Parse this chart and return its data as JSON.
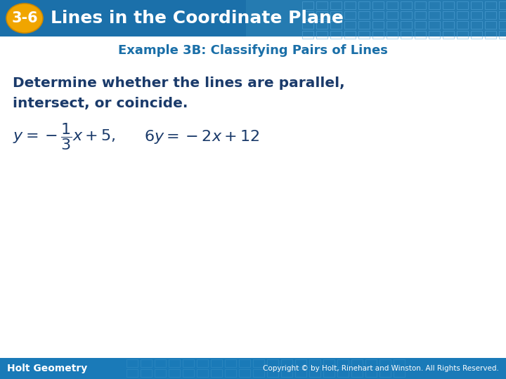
{
  "title_badge": "3-6",
  "title_text": "Lines in the Coordinate Plane",
  "subtitle": "Example 3B: Classifying Pairs of Lines",
  "body_line1": "Determine whether the lines are parallel,",
  "body_line2": "intersect, or coincide.",
  "footer_left": "Holt Geometry",
  "footer_right": "Copyright © by Holt, Rinehart and Winston. All Rights Reserved.",
  "header_bg_color": "#1b70aa",
  "badge_color": "#f0a500",
  "badge_text_color": "#ffffff",
  "title_text_color": "#ffffff",
  "subtitle_color": "#1a6fa8",
  "body_color": "#1a3a6a",
  "footer_bg_color": "#1a7ab8",
  "footer_text_color": "#ffffff",
  "main_bg": "#ffffff"
}
